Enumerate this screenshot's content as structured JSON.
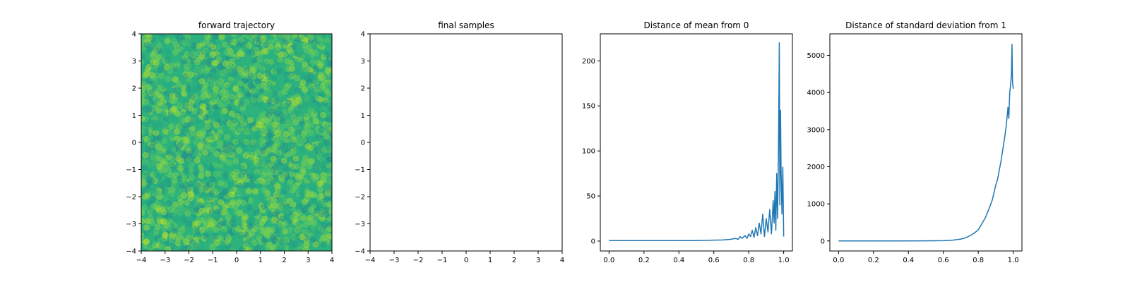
{
  "chart_data": [
    {
      "type": "scatter",
      "title": "forward trajectory",
      "xlim": [
        -4,
        4
      ],
      "ylim": [
        -4,
        4
      ],
      "xticks": [
        -4,
        -3,
        -2,
        -1,
        0,
        1,
        2,
        3,
        4
      ],
      "yticks": [
        -4,
        -3,
        -2,
        -1,
        0,
        1,
        2,
        3,
        4
      ],
      "grid": false,
      "colors": {
        "fill": "#2db27d",
        "points": [
          "#22a884",
          "#2db27d",
          "#5ec962",
          "#addc30",
          "#7ad151",
          "#21918c"
        ]
      },
      "appearance": "area densely filled with semi-transparent viridis-colored circular markers covering the full square",
      "density_points": 2600
    },
    {
      "type": "scatter",
      "title": "final samples",
      "xlim": [
        -4,
        4
      ],
      "ylim": [
        -4,
        4
      ],
      "xticks": [
        -4,
        -3,
        -2,
        -1,
        0,
        1,
        2,
        3,
        4
      ],
      "yticks": [
        -4,
        -3,
        -2,
        -1,
        0,
        1,
        2,
        3,
        4
      ],
      "grid": false,
      "points": []
    },
    {
      "type": "line",
      "title": "Distance of mean from 0",
      "xlim": [
        -0.05,
        1.05
      ],
      "ylim": [
        -11,
        230
      ],
      "xticks": [
        0.0,
        0.2,
        0.4,
        0.6,
        0.8,
        1.0
      ],
      "xtick_labels": [
        "0.0",
        "0.2",
        "0.4",
        "0.6",
        "0.8",
        "1.0"
      ],
      "yticks": [
        0,
        50,
        100,
        150,
        200
      ],
      "color": "#1f77b4",
      "grid": false,
      "x": [
        0.0,
        0.5,
        0.6,
        0.65,
        0.7,
        0.72,
        0.74,
        0.75,
        0.76,
        0.78,
        0.79,
        0.8,
        0.81,
        0.82,
        0.83,
        0.84,
        0.85,
        0.86,
        0.87,
        0.88,
        0.89,
        0.9,
        0.91,
        0.92,
        0.93,
        0.94,
        0.945,
        0.95,
        0.955,
        0.96,
        0.965,
        0.97,
        0.975,
        0.978,
        0.982,
        0.985,
        0.99,
        0.995,
        1.0
      ],
      "y": [
        0.5,
        0.5,
        1.0,
        1.2,
        2.0,
        3.0,
        2.0,
        5.0,
        3.0,
        6.0,
        3.0,
        8.0,
        5.0,
        12.0,
        4.0,
        15.0,
        6.0,
        20.0,
        8.0,
        30.0,
        5.0,
        25.0,
        10.0,
        35.0,
        8.0,
        45.0,
        20.0,
        55.0,
        12.0,
        75.0,
        25.0,
        97.0,
        220.0,
        40.0,
        145.0,
        80.0,
        30.0,
        82.0,
        5.0
      ]
    },
    {
      "type": "line",
      "title": "Distance of standard deviation from 1",
      "xlim": [
        -0.05,
        1.05
      ],
      "ylim": [
        -270,
        5580
      ],
      "xticks": [
        0.0,
        0.2,
        0.4,
        0.6,
        0.8,
        1.0
      ],
      "xtick_labels": [
        "0.0",
        "0.2",
        "0.4",
        "0.6",
        "0.8",
        "1.0"
      ],
      "yticks": [
        0,
        1000,
        2000,
        3000,
        4000,
        5000
      ],
      "color": "#1f77b4",
      "grid": false,
      "x": [
        0.0,
        0.3,
        0.5,
        0.6,
        0.65,
        0.7,
        0.73,
        0.76,
        0.79,
        0.8,
        0.82,
        0.84,
        0.86,
        0.88,
        0.9,
        0.91,
        0.92,
        0.93,
        0.94,
        0.95,
        0.96,
        0.97,
        0.975,
        0.98,
        0.985,
        0.99,
        0.993,
        0.996,
        1.0
      ],
      "y": [
        0,
        0,
        2,
        8,
        20,
        50,
        90,
        160,
        260,
        300,
        460,
        620,
        850,
        1100,
        1500,
        1650,
        1900,
        2150,
        2450,
        2750,
        3100,
        3600,
        3300,
        4000,
        4200,
        4500,
        5300,
        4300,
        4100
      ]
    }
  ]
}
